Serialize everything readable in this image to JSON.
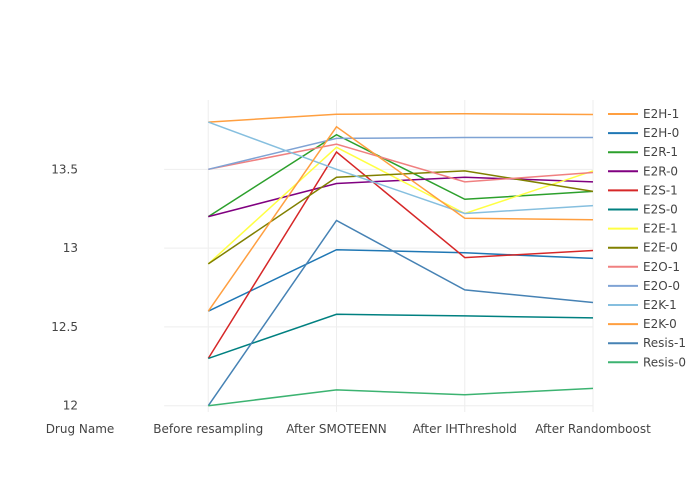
{
  "chart_data": {
    "type": "line",
    "categories": [
      "Drug Name",
      "Before resampling",
      "After SMOTEENN",
      "After IHThreshold",
      "After Randomboost"
    ],
    "ylim": [
      11.96,
      13.94
    ],
    "y_ticks": [
      12,
      12.5,
      13,
      13.5
    ],
    "y_tick_labels": [
      "12",
      "12.5",
      "13",
      "13.5"
    ],
    "grid": true,
    "legend_position": "right",
    "series": [
      {
        "name": "E2H-1",
        "color": "#ff9f40",
        "values": [
          null,
          13.8,
          13.85,
          13.853,
          13.848
        ]
      },
      {
        "name": "E2H-0",
        "color": "#1f77b4",
        "values": [
          null,
          12.6,
          12.99,
          12.97,
          12.935
        ]
      },
      {
        "name": "E2R-1",
        "color": "#2ca02c",
        "values": [
          null,
          13.2,
          13.72,
          13.31,
          13.36
        ]
      },
      {
        "name": "E2R-0",
        "color": "#800080",
        "values": [
          null,
          13.2,
          13.41,
          13.45,
          13.42
        ]
      },
      {
        "name": "E2S-1",
        "color": "#d62728",
        "values": [
          null,
          12.3,
          13.61,
          12.94,
          12.985
        ]
      },
      {
        "name": "E2S-0",
        "color": "#008080",
        "values": [
          null,
          12.3,
          12.58,
          12.57,
          12.557
        ]
      },
      {
        "name": "E2E-1",
        "color": "#ffff44",
        "values": [
          null,
          12.9,
          13.64,
          13.22,
          13.49
        ]
      },
      {
        "name": "E2E-0",
        "color": "#808000",
        "values": [
          null,
          12.9,
          13.45,
          13.49,
          13.36
        ]
      },
      {
        "name": "E2O-1",
        "color": "#f08080",
        "values": [
          null,
          13.5,
          13.66,
          13.42,
          13.48
        ]
      },
      {
        "name": "E2O-0",
        "color": "#7fa3d4",
        "values": [
          null,
          13.5,
          13.696,
          13.702,
          13.702
        ]
      },
      {
        "name": "E2K-1",
        "color": "#86bfdf",
        "values": [
          null,
          13.8,
          13.5,
          13.22,
          13.27
        ]
      },
      {
        "name": "E2K-0",
        "color": "#ff9f40",
        "values": [
          null,
          12.6,
          13.77,
          13.19,
          13.18
        ]
      },
      {
        "name": "Resis-1",
        "color": "#4682b4",
        "values": [
          null,
          12.0,
          13.175,
          12.735,
          12.655
        ]
      },
      {
        "name": "Resis-0",
        "color": "#3cb371",
        "values": [
          null,
          12.0,
          12.1,
          12.07,
          12.11
        ]
      }
    ]
  }
}
